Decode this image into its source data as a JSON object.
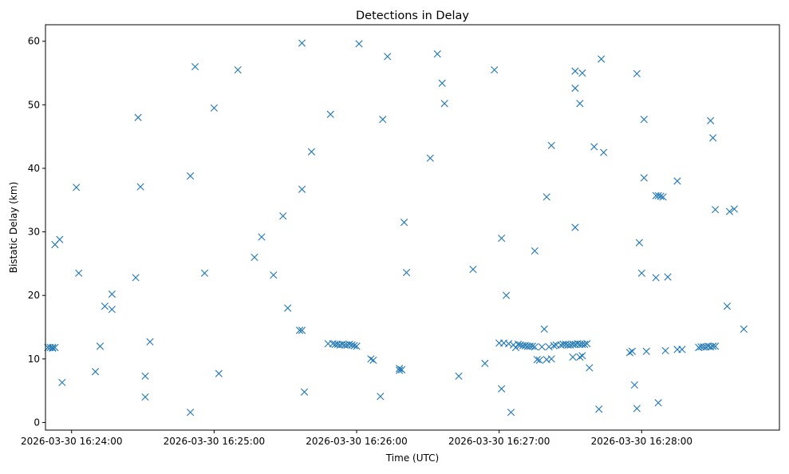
{
  "chart_data": {
    "type": "scatter",
    "title": "Detections in Delay",
    "xlabel": "Time (UTC)",
    "ylabel": "Bistatic Delay (km)",
    "x_axis_type": "datetime",
    "xlim": [
      "2026-03-30 16:23:49",
      "2026-03-30 16:28:58"
    ],
    "ylim": [
      -1.2,
      62.6
    ],
    "x_ticks": [
      "2026-03-30 16:24:00",
      "2026-03-30 16:25:00",
      "2026-03-30 16:26:00",
      "2026-03-30 16:27:00",
      "2026-03-30 16:28:00"
    ],
    "y_ticks": [
      0,
      10,
      20,
      30,
      40,
      50,
      60
    ],
    "grid": false,
    "legend": "none",
    "marker": "x",
    "color": "#1f77b4",
    "points": [
      [
        "2026-03-30 16:23:50",
        11.8
      ],
      [
        "2026-03-30 16:23:51",
        11.8
      ],
      [
        "2026-03-30 16:23:52",
        11.8
      ],
      [
        "2026-03-30 16:23:52",
        11.7
      ],
      [
        "2026-03-30 16:23:53",
        11.8
      ],
      [
        "2026-03-30 16:23:53",
        28.0
      ],
      [
        "2026-03-30 16:23:55",
        28.8
      ],
      [
        "2026-03-30 16:23:56",
        6.3
      ],
      [
        "2026-03-30 16:24:02",
        37.0
      ],
      [
        "2026-03-30 16:24:03",
        23.5
      ],
      [
        "2026-03-30 16:24:10",
        8.0
      ],
      [
        "2026-03-30 16:24:12",
        12.0
      ],
      [
        "2026-03-30 16:24:14",
        18.3
      ],
      [
        "2026-03-30 16:24:17",
        17.8
      ],
      [
        "2026-03-30 16:24:17",
        20.2
      ],
      [
        "2026-03-30 16:24:27",
        22.8
      ],
      [
        "2026-03-30 16:24:28",
        48.0
      ],
      [
        "2026-03-30 16:24:29",
        37.1
      ],
      [
        "2026-03-30 16:24:31",
        7.3
      ],
      [
        "2026-03-30 16:24:31",
        4.0
      ],
      [
        "2026-03-30 16:24:33",
        12.7
      ],
      [
        "2026-03-30 16:24:50",
        1.6
      ],
      [
        "2026-03-30 16:24:50",
        38.8
      ],
      [
        "2026-03-30 16:24:52",
        56.0
      ],
      [
        "2026-03-30 16:24:56",
        23.5
      ],
      [
        "2026-03-30 16:25:00",
        49.5
      ],
      [
        "2026-03-30 16:25:02",
        7.7
      ],
      [
        "2026-03-30 16:25:10",
        55.5
      ],
      [
        "2026-03-30 16:25:17",
        26.0
      ],
      [
        "2026-03-30 16:25:20",
        29.2
      ],
      [
        "2026-03-30 16:25:25",
        23.2
      ],
      [
        "2026-03-30 16:25:29",
        32.5
      ],
      [
        "2026-03-30 16:25:31",
        18.0
      ],
      [
        "2026-03-30 16:25:36",
        14.5
      ],
      [
        "2026-03-30 16:25:37",
        14.5
      ],
      [
        "2026-03-30 16:25:37",
        59.7
      ],
      [
        "2026-03-30 16:25:37",
        36.7
      ],
      [
        "2026-03-30 16:25:38",
        4.8
      ],
      [
        "2026-03-30 16:25:41",
        42.6
      ],
      [
        "2026-03-30 16:25:49",
        48.5
      ],
      [
        "2026-03-30 16:25:48",
        12.4
      ],
      [
        "2026-03-30 16:25:50",
        12.4
      ],
      [
        "2026-03-30 16:25:51",
        12.3
      ],
      [
        "2026-03-30 16:25:52",
        12.3
      ],
      [
        "2026-03-30 16:25:53",
        12.2
      ],
      [
        "2026-03-30 16:25:54",
        12.3
      ],
      [
        "2026-03-30 16:25:55",
        12.2
      ],
      [
        "2026-03-30 16:25:56",
        12.2
      ],
      [
        "2026-03-30 16:25:57",
        12.3
      ],
      [
        "2026-03-30 16:25:58",
        12.2
      ],
      [
        "2026-03-30 16:25:59",
        12.1
      ],
      [
        "2026-03-30 16:26:00",
        12.0
      ],
      [
        "2026-03-30 16:26:01",
        59.6
      ],
      [
        "2026-03-30 16:26:06",
        10.0
      ],
      [
        "2026-03-30 16:26:07",
        9.8
      ],
      [
        "2026-03-30 16:26:10",
        4.1
      ],
      [
        "2026-03-30 16:26:11",
        47.7
      ],
      [
        "2026-03-30 16:26:13",
        57.6
      ],
      [
        "2026-03-30 16:26:18",
        8.5
      ],
      [
        "2026-03-30 16:26:18",
        8.2
      ],
      [
        "2026-03-30 16:26:19",
        8.3
      ],
      [
        "2026-03-30 16:26:20",
        31.5
      ],
      [
        "2026-03-30 16:26:21",
        23.6
      ],
      [
        "2026-03-30 16:26:31",
        41.6
      ],
      [
        "2026-03-30 16:26:34",
        58.0
      ],
      [
        "2026-03-30 16:26:36",
        53.4
      ],
      [
        "2026-03-30 16:26:37",
        50.2
      ],
      [
        "2026-03-30 16:26:43",
        7.3
      ],
      [
        "2026-03-30 16:26:49",
        24.1
      ],
      [
        "2026-03-30 16:26:54",
        9.3
      ],
      [
        "2026-03-30 16:26:58",
        55.5
      ],
      [
        "2026-03-30 16:27:00",
        12.5
      ],
      [
        "2026-03-30 16:27:01",
        29.0
      ],
      [
        "2026-03-30 16:27:01",
        5.3
      ],
      [
        "2026-03-30 16:27:02",
        12.5
      ],
      [
        "2026-03-30 16:27:03",
        20.0
      ],
      [
        "2026-03-30 16:27:04",
        12.4
      ],
      [
        "2026-03-30 16:27:05",
        1.6
      ],
      [
        "2026-03-30 16:27:06",
        12.2
      ],
      [
        "2026-03-30 16:27:07",
        11.8
      ],
      [
        "2026-03-30 16:27:08",
        12.3
      ],
      [
        "2026-03-30 16:27:09",
        12.2
      ],
      [
        "2026-03-30 16:27:10",
        12.1
      ],
      [
        "2026-03-30 16:27:11",
        12.1
      ],
      [
        "2026-03-30 16:27:12",
        12.0
      ],
      [
        "2026-03-30 16:27:13",
        12.0
      ],
      [
        "2026-03-30 16:27:14",
        12.0
      ],
      [
        "2026-03-30 16:27:15",
        27.0
      ],
      [
        "2026-03-30 16:27:15",
        11.9
      ],
      [
        "2026-03-30 16:27:16",
        9.9
      ],
      [
        "2026-03-30 16:27:17",
        9.8
      ],
      [
        "2026-03-30 16:27:18",
        11.9
      ],
      [
        "2026-03-30 16:27:19",
        14.7
      ],
      [
        "2026-03-30 16:27:20",
        35.5
      ],
      [
        "2026-03-30 16:27:20",
        9.9
      ],
      [
        "2026-03-30 16:27:21",
        11.9
      ],
      [
        "2026-03-30 16:27:22",
        43.6
      ],
      [
        "2026-03-30 16:27:22",
        10.0
      ],
      [
        "2026-03-30 16:27:23",
        12.1
      ],
      [
        "2026-03-30 16:27:24",
        12.2
      ],
      [
        "2026-03-30 16:27:26",
        12.2
      ],
      [
        "2026-03-30 16:27:27",
        12.3
      ],
      [
        "2026-03-30 16:27:28",
        12.3
      ],
      [
        "2026-03-30 16:27:29",
        12.2
      ],
      [
        "2026-03-30 16:27:30",
        12.2
      ],
      [
        "2026-03-30 16:27:31",
        12.3
      ],
      [
        "2026-03-30 16:27:31",
        10.3
      ],
      [
        "2026-03-30 16:27:32",
        12.3
      ],
      [
        "2026-03-30 16:27:32",
        55.3
      ],
      [
        "2026-03-30 16:27:32",
        52.6
      ],
      [
        "2026-03-30 16:27:32",
        30.7
      ],
      [
        "2026-03-30 16:27:33",
        12.4
      ],
      [
        "2026-03-30 16:27:34",
        50.2
      ],
      [
        "2026-03-30 16:27:34",
        10.3
      ],
      [
        "2026-03-30 16:27:34",
        12.3
      ],
      [
        "2026-03-30 16:27:35",
        55.0
      ],
      [
        "2026-03-30 16:27:35",
        12.3
      ],
      [
        "2026-03-30 16:27:35",
        10.5
      ],
      [
        "2026-03-30 16:27:36",
        12.3
      ],
      [
        "2026-03-30 16:27:37",
        12.4
      ],
      [
        "2026-03-30 16:27:38",
        8.6
      ],
      [
        "2026-03-30 16:27:40",
        43.4
      ],
      [
        "2026-03-30 16:27:42",
        2.1
      ],
      [
        "2026-03-30 16:27:43",
        57.2
      ],
      [
        "2026-03-30 16:27:44",
        42.5
      ],
      [
        "2026-03-30 16:27:55",
        11.0
      ],
      [
        "2026-03-30 16:27:56",
        11.2
      ],
      [
        "2026-03-30 16:27:57",
        5.9
      ],
      [
        "2026-03-30 16:27:58",
        54.9
      ],
      [
        "2026-03-30 16:27:58",
        2.2
      ],
      [
        "2026-03-30 16:27:59",
        28.3
      ],
      [
        "2026-03-30 16:28:00",
        23.5
      ],
      [
        "2026-03-30 16:28:01",
        47.7
      ],
      [
        "2026-03-30 16:28:01",
        38.5
      ],
      [
        "2026-03-30 16:28:02",
        11.2
      ],
      [
        "2026-03-30 16:28:06",
        22.8
      ],
      [
        "2026-03-30 16:28:06",
        35.7
      ],
      [
        "2026-03-30 16:28:07",
        35.7
      ],
      [
        "2026-03-30 16:28:07",
        3.1
      ],
      [
        "2026-03-30 16:28:08",
        35.6
      ],
      [
        "2026-03-30 16:28:09",
        35.5
      ],
      [
        "2026-03-30 16:28:10",
        11.3
      ],
      [
        "2026-03-30 16:28:11",
        22.9
      ],
      [
        "2026-03-30 16:28:15",
        38.0
      ],
      [
        "2026-03-30 16:28:15",
        11.5
      ],
      [
        "2026-03-30 16:28:17",
        11.5
      ],
      [
        "2026-03-30 16:28:24",
        11.8
      ],
      [
        "2026-03-30 16:28:25",
        11.9
      ],
      [
        "2026-03-30 16:28:26",
        11.9
      ],
      [
        "2026-03-30 16:28:27",
        11.9
      ],
      [
        "2026-03-30 16:28:28",
        12.0
      ],
      [
        "2026-03-30 16:28:29",
        47.5
      ],
      [
        "2026-03-30 16:28:29",
        11.9
      ],
      [
        "2026-03-30 16:28:30",
        44.8
      ],
      [
        "2026-03-30 16:28:30",
        12.0
      ],
      [
        "2026-03-30 16:28:31",
        12.0
      ],
      [
        "2026-03-30 16:28:31",
        33.5
      ],
      [
        "2026-03-30 16:28:36",
        18.3
      ],
      [
        "2026-03-30 16:28:37",
        33.2
      ],
      [
        "2026-03-30 16:28:39",
        33.6
      ],
      [
        "2026-03-30 16:28:43",
        14.7
      ]
    ]
  }
}
